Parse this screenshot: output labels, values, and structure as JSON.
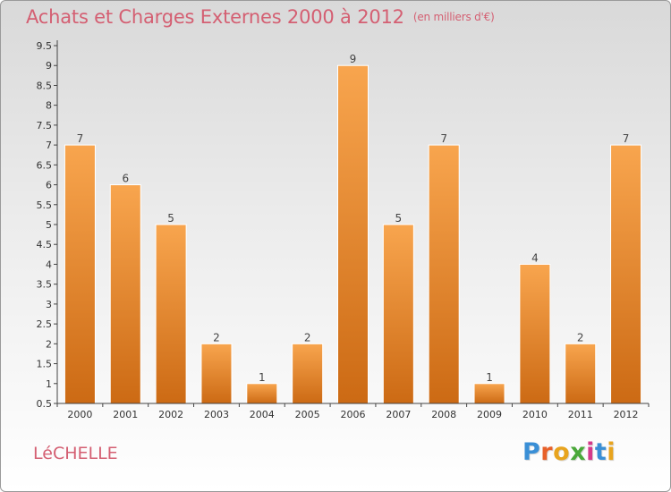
{
  "title": "Achats et Charges Externes 2000 à 2012",
  "unit_note": "(en milliers d'€)",
  "commune": "LéCHELLE",
  "logo": {
    "text": "Proxiti",
    "letter_colors": [
      "#3a8fd6",
      "#e8612a",
      "#e8a41e",
      "#4aa83a",
      "#d43a8a",
      "#3a8fd6",
      "#e8a41e"
    ]
  },
  "colors": {
    "bar_light": "#f8a54e",
    "bar_dark": "#cc6a14",
    "title": "#d45f72",
    "axis": "#444444"
  },
  "chart_data": {
    "type": "bar",
    "title": "Achats et Charges Externes 2000 à 2012",
    "subtitle": "(en milliers d'€)",
    "xlabel": "",
    "ylabel": "",
    "categories": [
      "2000",
      "2001",
      "2002",
      "2003",
      "2004",
      "2005",
      "2006",
      "2007",
      "2008",
      "2009",
      "2010",
      "2011",
      "2012"
    ],
    "values": [
      7,
      6,
      5,
      2,
      1,
      2,
      9,
      5,
      7,
      1,
      4,
      2,
      7
    ],
    "data_labels": [
      "7",
      "6",
      "5",
      "2",
      "1",
      "2",
      "9",
      "5",
      "7",
      "1",
      "4",
      "2",
      "7"
    ],
    "ylim": [
      0.5,
      9.5
    ],
    "yticks": [
      0.5,
      1,
      1.5,
      2,
      2.5,
      3,
      3.5,
      4,
      4.5,
      5,
      5.5,
      6,
      6.5,
      7,
      7.5,
      8,
      8.5,
      9,
      9.5
    ],
    "ytick_labels": [
      "0.5",
      "1",
      "1.5",
      "2",
      "2.5",
      "3",
      "3.5",
      "4",
      "4.5",
      "5",
      "5.5",
      "6",
      "6.5",
      "7",
      "7.5",
      "8",
      "8.5",
      "9",
      "9.5"
    ],
    "grid": false,
    "legend": "none"
  }
}
